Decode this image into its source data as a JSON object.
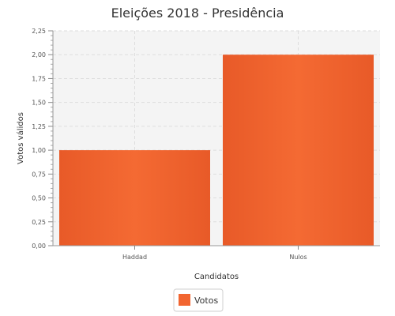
{
  "chart_data": {
    "type": "bar",
    "title": "Eleições 2018 - Presidência",
    "xlabel": "Candidatos",
    "ylabel": "Votos válidos",
    "categories": [
      "Haddad",
      "Nulos"
    ],
    "series": [
      {
        "name": "Votos",
        "values": [
          1.0,
          2.0
        ]
      }
    ],
    "ylim": [
      0,
      2.25
    ],
    "yticks": [
      "0,00",
      "0,25",
      "0,50",
      "0,75",
      "1,00",
      "1,25",
      "1,50",
      "1,75",
      "2,00",
      "2,25"
    ],
    "grid": true,
    "legend_position": "bottom",
    "colors": {
      "bar": "#f26530",
      "plot_background": "#f4f4f4",
      "grid": "#dddddd"
    }
  }
}
